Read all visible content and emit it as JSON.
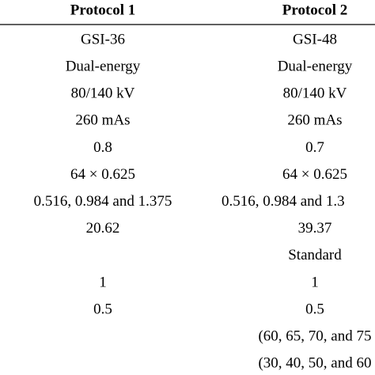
{
  "table": {
    "header": [
      "Protocol 1",
      "Protocol 2"
    ],
    "rows": [
      [
        "GSI-36",
        "GSI-48"
      ],
      [
        "Dual-energy",
        "Dual-energy"
      ],
      [
        "80/140 kV",
        "80/140 kV"
      ],
      [
        "260 mAs",
        "260 mAs"
      ],
      [
        "0.8",
        "0.7"
      ],
      [
        "64 × 0.625",
        "64 × 0.625"
      ],
      [
        "0.516, 0.984 and 1.375",
        "0.516, 0.984 and 1.3"
      ],
      [
        "20.62",
        "39.37"
      ],
      [
        null,
        "Standard"
      ],
      [
        "1",
        "1"
      ],
      [
        "0.5",
        "0.5"
      ],
      [
        null,
        "(60, 65, 70, and 75"
      ],
      [
        null,
        "(30, 40, 50, and 60"
      ]
    ]
  }
}
